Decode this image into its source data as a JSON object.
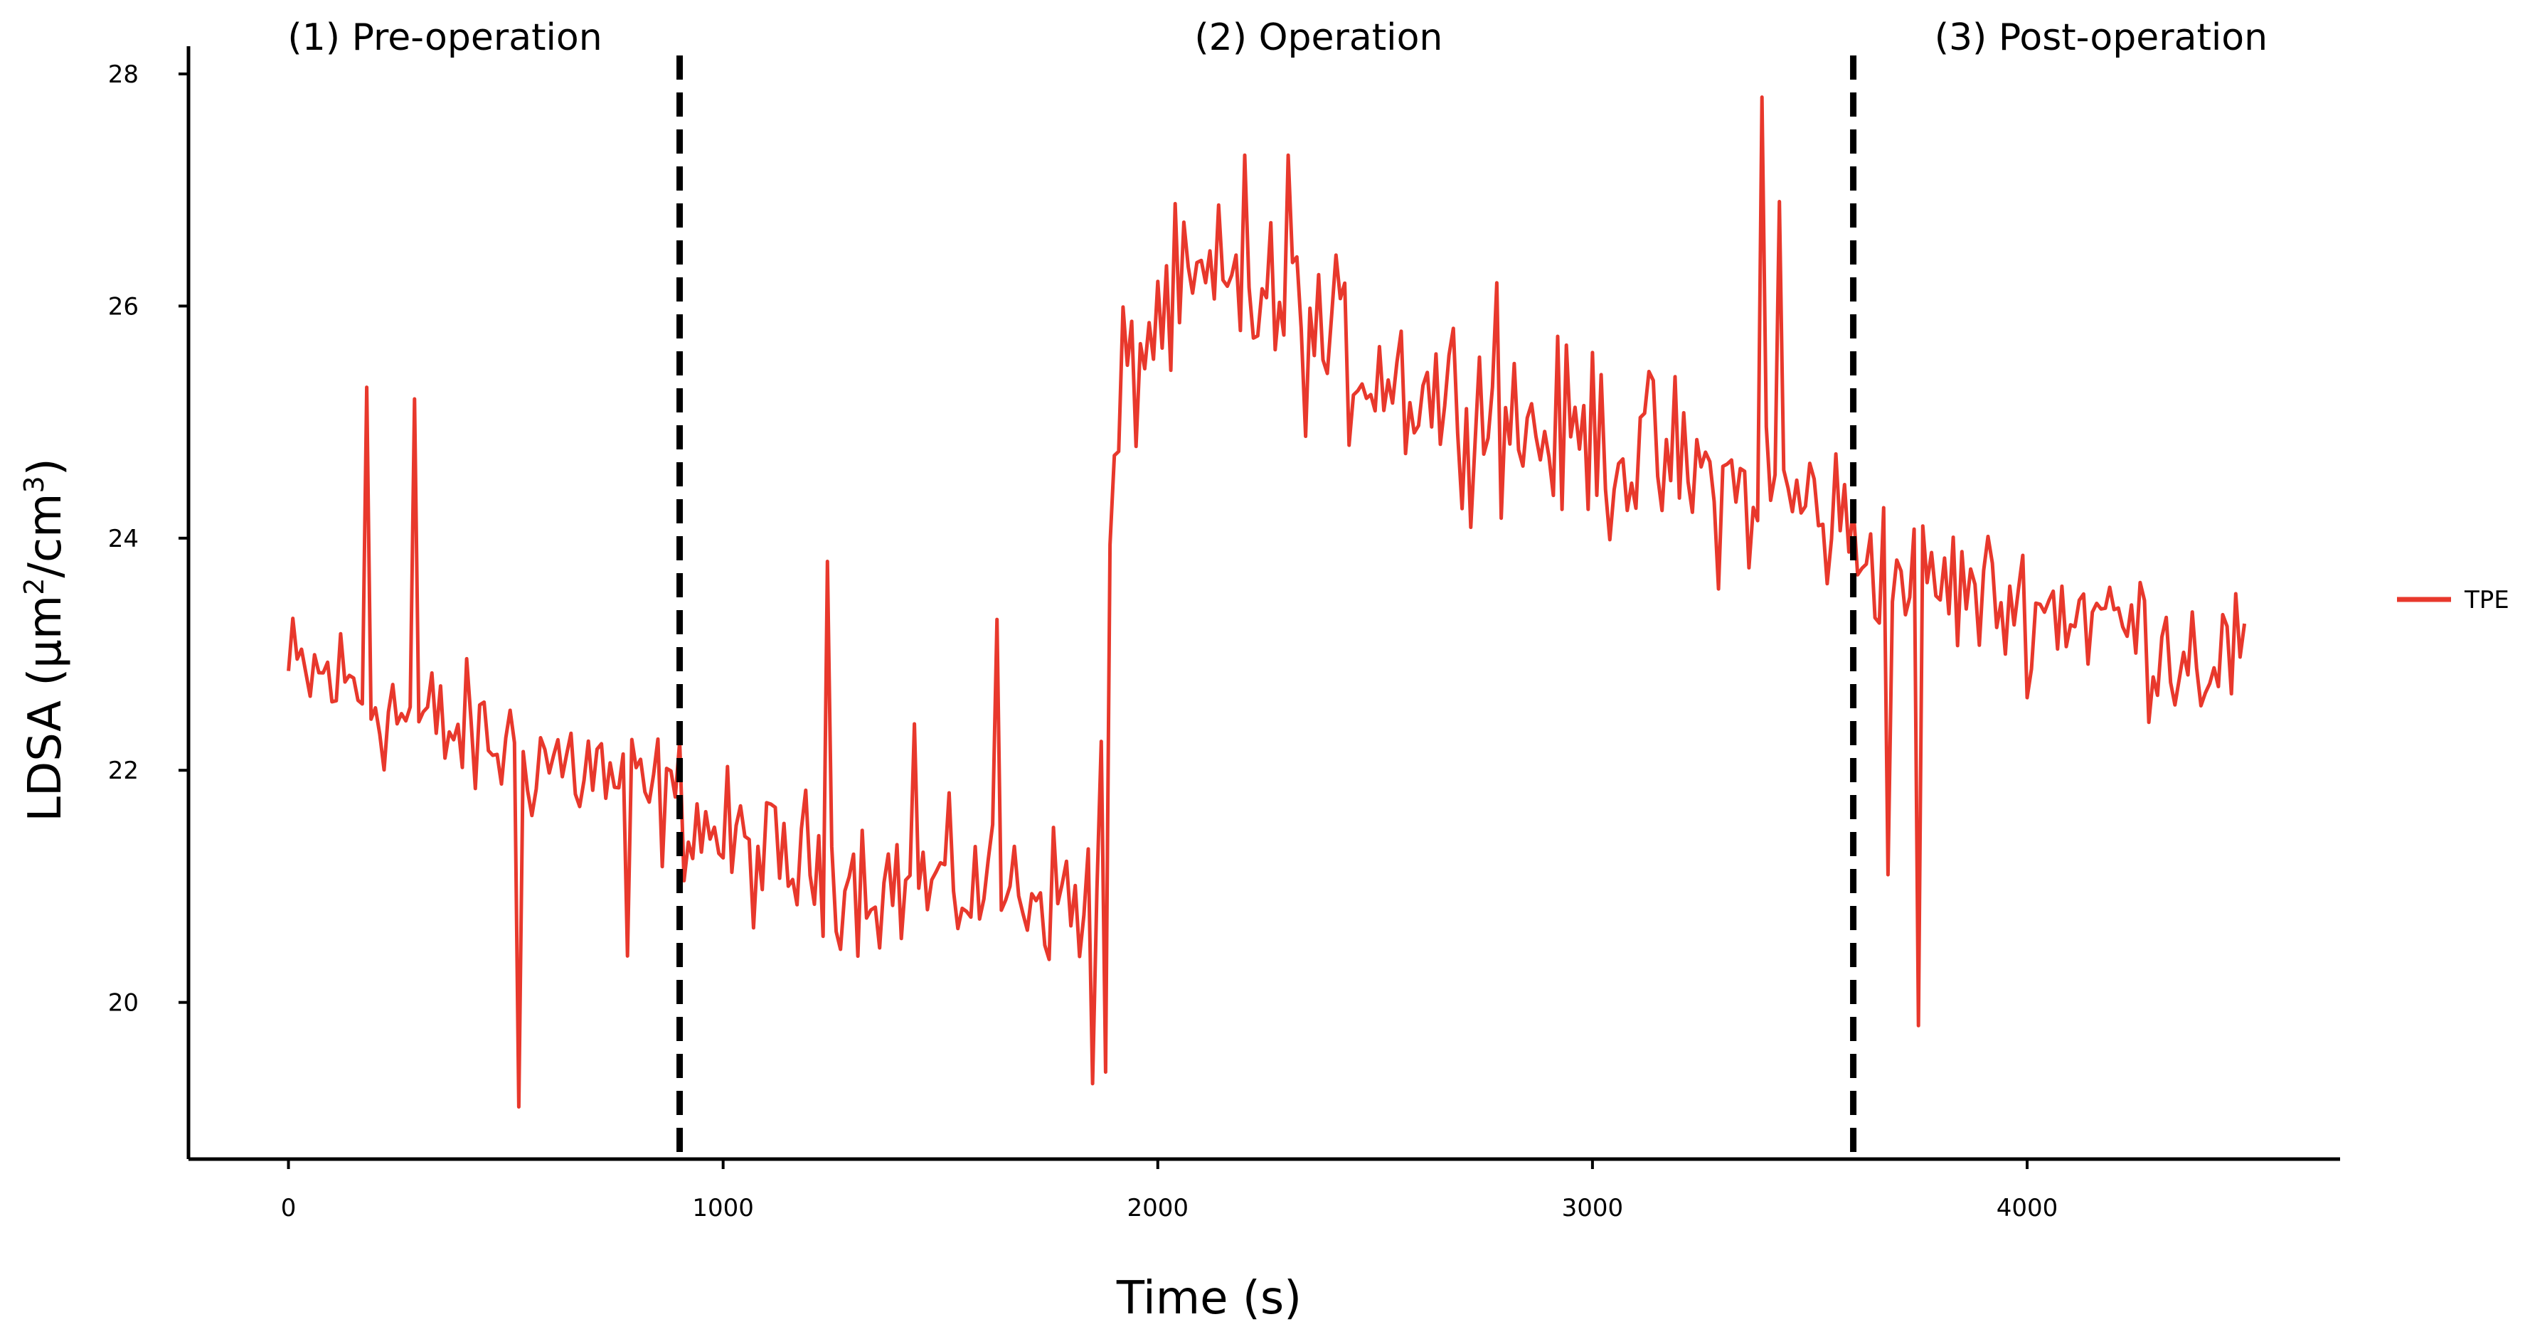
{
  "colors": {
    "series": "#e8382c",
    "axis": "#000000",
    "divider": "#000000",
    "background": "#ffffff"
  },
  "chart_data": {
    "type": "line",
    "title": "",
    "xlabel": "Time (s)",
    "ylabel_main": "LDSA (μm",
    "ylabel_exp1": "2",
    "ylabel_mid": "/cm",
    "ylabel_exp2": "3",
    "ylabel_close": ")",
    "xlim": [
      -230,
      4720
    ],
    "ylim": [
      18.65,
      28.3
    ],
    "x_ticks": [
      0,
      1000,
      2000,
      3000,
      4000
    ],
    "x_tick_labels": [
      "0",
      "1000",
      "2000",
      "3000",
      "4000"
    ],
    "y_ticks": [
      20,
      22,
      24,
      26,
      28
    ],
    "y_tick_labels": [
      "20",
      "22",
      "24",
      "26",
      "28"
    ],
    "grid": false,
    "legend": {
      "position": "right",
      "entries": [
        "TPE"
      ]
    },
    "phase_boundaries": [
      900,
      3600
    ],
    "phase_boundary_style": "dashed",
    "phases": [
      {
        "label": "(1) Pre-operation",
        "x": 360
      },
      {
        "label": "(2) Operation",
        "x": 2370
      },
      {
        "label": "(3) Post-operation",
        "x": 4170
      }
    ],
    "series": [
      {
        "name": "TPE",
        "sampling_interval_s": 10,
        "envelope": [
          [
            0,
            22.8
          ],
          [
            100,
            22.8
          ],
          [
            200,
            22.6
          ],
          [
            300,
            22.4
          ],
          [
            400,
            22.3
          ],
          [
            500,
            22.2
          ],
          [
            600,
            22.1
          ],
          [
            700,
            22.0
          ],
          [
            800,
            21.8
          ],
          [
            900,
            21.7
          ],
          [
            1000,
            21.4
          ],
          [
            1100,
            21.2
          ],
          [
            1200,
            21.2
          ],
          [
            1300,
            21.1
          ],
          [
            1400,
            21.0
          ],
          [
            1500,
            21.0
          ],
          [
            1600,
            21.0
          ],
          [
            1700,
            21.0
          ],
          [
            1800,
            20.9
          ],
          [
            1860,
            20.9
          ],
          [
            1880,
            23.5
          ],
          [
            1920,
            25.3
          ],
          [
            2000,
            25.9
          ],
          [
            2100,
            26.1
          ],
          [
            2200,
            26.1
          ],
          [
            2300,
            25.9
          ],
          [
            2400,
            25.6
          ],
          [
            2500,
            25.5
          ],
          [
            2600,
            25.3
          ],
          [
            2700,
            25.2
          ],
          [
            2800,
            25.0
          ],
          [
            2900,
            24.9
          ],
          [
            3000,
            24.8
          ],
          [
            3100,
            24.7
          ],
          [
            3200,
            24.6
          ],
          [
            3300,
            24.4
          ],
          [
            3400,
            24.4
          ],
          [
            3500,
            24.3
          ],
          [
            3600,
            24.0
          ],
          [
            3700,
            23.7
          ],
          [
            3800,
            23.6
          ],
          [
            3900,
            23.5
          ],
          [
            4000,
            23.4
          ],
          [
            4100,
            23.4
          ],
          [
            4200,
            23.3
          ],
          [
            4300,
            23.1
          ],
          [
            4400,
            23.0
          ],
          [
            4500,
            23.0
          ]
        ],
        "spikes": [
          [
            180,
            25.3
          ],
          [
            285,
            25.2
          ],
          [
            530,
            19.1
          ],
          [
            780,
            20.4
          ],
          [
            1240,
            23.8
          ],
          [
            1440,
            22.4
          ],
          [
            1630,
            23.3
          ],
          [
            1850,
            19.3
          ],
          [
            1880,
            19.4
          ],
          [
            2200,
            27.3
          ],
          [
            2300,
            27.3
          ],
          [
            2780,
            26.2
          ],
          [
            3000,
            25.6
          ],
          [
            3390,
            27.8
          ],
          [
            3430,
            26.9
          ],
          [
            3680,
            21.1
          ],
          [
            3750,
            19.8
          ]
        ]
      }
    ]
  }
}
